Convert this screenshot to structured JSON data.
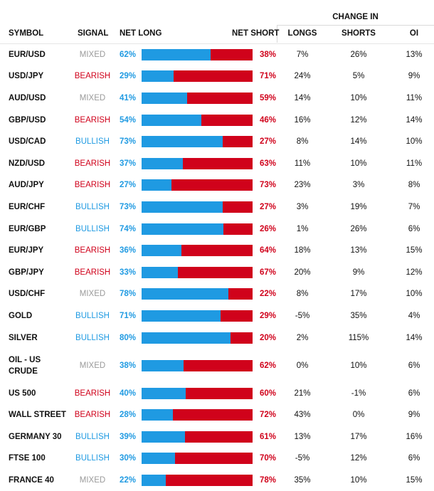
{
  "header": {
    "change_in": "CHANGE IN",
    "symbol": "SYMBOL",
    "signal": "SIGNAL",
    "net_long": "NET LONG",
    "net_short": "NET SHORT",
    "longs": "LONGS",
    "shorts": "SHORTS",
    "oi": "OI"
  },
  "colors": {
    "long": "#1f9ae2",
    "short": "#d0021b",
    "mixed": "#9a9a9a"
  },
  "rows": [
    {
      "symbol": "EUR/USD",
      "signal": "MIXED",
      "net_long": "62%",
      "long_fraction": 0.62,
      "net_short": "38%",
      "longs": "7%",
      "shorts": "26%",
      "oi": "13%"
    },
    {
      "symbol": "USD/JPY",
      "signal": "BEARISH",
      "net_long": "29%",
      "long_fraction": 0.29,
      "net_short": "71%",
      "longs": "24%",
      "shorts": "5%",
      "oi": "9%"
    },
    {
      "symbol": "AUD/USD",
      "signal": "MIXED",
      "net_long": "41%",
      "long_fraction": 0.41,
      "net_short": "59%",
      "longs": "14%",
      "shorts": "10%",
      "oi": "11%"
    },
    {
      "symbol": "GBP/USD",
      "signal": "BEARISH",
      "net_long": "54%",
      "long_fraction": 0.54,
      "net_short": "46%",
      "longs": "16%",
      "shorts": "12%",
      "oi": "14%"
    },
    {
      "symbol": "USD/CAD",
      "signal": "BULLISH",
      "net_long": "73%",
      "long_fraction": 0.73,
      "net_short": "27%",
      "longs": "8%",
      "shorts": "14%",
      "oi": "10%"
    },
    {
      "symbol": "NZD/USD",
      "signal": "BEARISH",
      "net_long": "37%",
      "long_fraction": 0.37,
      "net_short": "63%",
      "longs": "11%",
      "shorts": "10%",
      "oi": "11%"
    },
    {
      "symbol": "AUD/JPY",
      "signal": "BEARISH",
      "net_long": "27%",
      "long_fraction": 0.27,
      "net_short": "73%",
      "longs": "23%",
      "shorts": "3%",
      "oi": "8%"
    },
    {
      "symbol": "EUR/CHF",
      "signal": "BULLISH",
      "net_long": "73%",
      "long_fraction": 0.73,
      "net_short": "27%",
      "longs": "3%",
      "shorts": "19%",
      "oi": "7%"
    },
    {
      "symbol": "EUR/GBP",
      "signal": "BULLISH",
      "net_long": "74%",
      "long_fraction": 0.74,
      "net_short": "26%",
      "longs": "1%",
      "shorts": "26%",
      "oi": "6%"
    },
    {
      "symbol": "EUR/JPY",
      "signal": "BEARISH",
      "net_long": "36%",
      "long_fraction": 0.36,
      "net_short": "64%",
      "longs": "18%",
      "shorts": "13%",
      "oi": "15%"
    },
    {
      "symbol": "GBP/JPY",
      "signal": "BEARISH",
      "net_long": "33%",
      "long_fraction": 0.33,
      "net_short": "67%",
      "longs": "20%",
      "shorts": "9%",
      "oi": "12%"
    },
    {
      "symbol": "USD/CHF",
      "signal": "MIXED",
      "net_long": "78%",
      "long_fraction": 0.78,
      "net_short": "22%",
      "longs": "8%",
      "shorts": "17%",
      "oi": "10%"
    },
    {
      "symbol": "GOLD",
      "signal": "BULLISH",
      "net_long": "71%",
      "long_fraction": 0.71,
      "net_short": "29%",
      "longs": "-5%",
      "shorts": "35%",
      "oi": "4%"
    },
    {
      "symbol": "SILVER",
      "signal": "BULLISH",
      "net_long": "80%",
      "long_fraction": 0.8,
      "net_short": "20%",
      "longs": "2%",
      "shorts": "115%",
      "oi": "14%"
    },
    {
      "symbol": "OIL - US CRUDE",
      "signal": "MIXED",
      "net_long": "38%",
      "long_fraction": 0.38,
      "net_short": "62%",
      "longs": "0%",
      "shorts": "10%",
      "oi": "6%"
    },
    {
      "symbol": "US 500",
      "signal": "BEARISH",
      "net_long": "40%",
      "long_fraction": 0.4,
      "net_short": "60%",
      "longs": "21%",
      "shorts": "-1%",
      "oi": "6%"
    },
    {
      "symbol": "WALL STREET",
      "signal": "BEARISH",
      "net_long": "28%",
      "long_fraction": 0.28,
      "net_short": "72%",
      "longs": "43%",
      "shorts": "0%",
      "oi": "9%"
    },
    {
      "symbol": "GERMANY 30",
      "signal": "BULLISH",
      "net_long": "39%",
      "long_fraction": 0.39,
      "net_short": "61%",
      "longs": "13%",
      "shorts": "17%",
      "oi": "16%"
    },
    {
      "symbol": "FTSE 100",
      "signal": "BULLISH",
      "net_long": "30%",
      "long_fraction": 0.3,
      "net_short": "70%",
      "longs": "-5%",
      "shorts": "12%",
      "oi": "6%"
    },
    {
      "symbol": "FRANCE 40",
      "signal": "MIXED",
      "net_long": "22%",
      "long_fraction": 0.22,
      "net_short": "78%",
      "longs": "35%",
      "shorts": "10%",
      "oi": "15%"
    }
  ]
}
